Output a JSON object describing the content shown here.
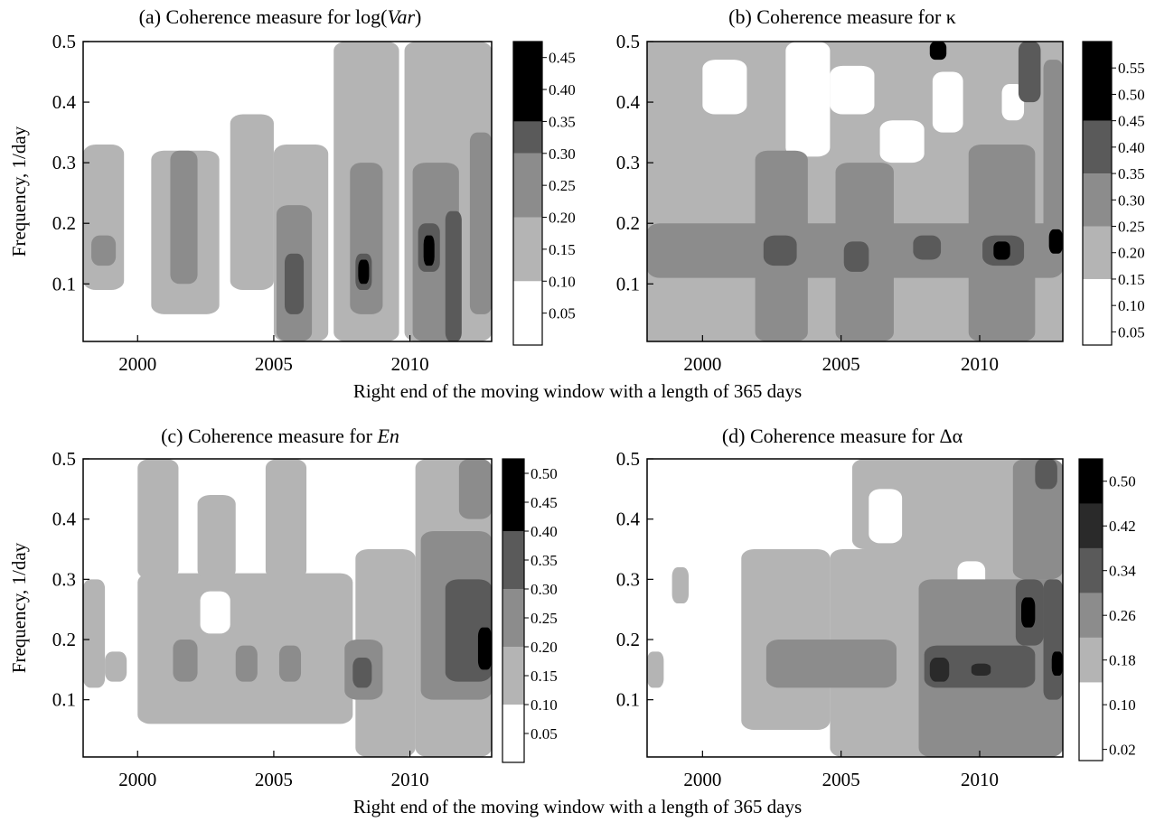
{
  "chart_data": [
    {
      "type": "heatmap",
      "title_prefix": "(a) Coherence measure for log",
      "title_italic": "Var",
      "ylabel": "Frequency, 1/day",
      "xlabel": "",
      "x_ticks": [
        "2000",
        "2005",
        "2010"
      ],
      "x_tick_values": [
        2000,
        2005,
        2010
      ],
      "y_ticks": [
        "0.1",
        "0.2",
        "0.3",
        "0.4",
        "0.5"
      ],
      "y_tick_values": [
        0.1,
        0.2,
        0.3,
        0.4,
        0.5
      ],
      "xlim": [
        1998,
        2013
      ],
      "ylim": [
        0.005,
        0.5
      ],
      "colorbar_ticks": [
        "0.05",
        "0.10",
        "0.15",
        "0.20",
        "0.25",
        "0.30",
        "0.35",
        "0.40",
        "0.45"
      ],
      "colorbar_values": [
        0.05,
        0.1,
        0.15,
        0.2,
        0.25,
        0.3,
        0.35,
        0.4,
        0.45
      ],
      "colorbar_range": [
        0.0,
        0.475
      ],
      "level_boundaries": [
        0.1,
        0.2,
        0.3,
        0.35
      ],
      "level_colors": [
        "#ffffff",
        "#b4b4b4",
        "#8c8c8c",
        "#5a5a5a",
        "#000000"
      ],
      "bands": [
        {
          "x0": 1998.0,
          "x1": 1999.5,
          "y0": 0.09,
          "y1": 0.33,
          "level": 1
        },
        {
          "x0": 1998.3,
          "x1": 1999.2,
          "y0": 0.13,
          "y1": 0.18,
          "level": 2
        },
        {
          "x0": 2000.5,
          "x1": 2003.0,
          "y0": 0.05,
          "y1": 0.32,
          "level": 1
        },
        {
          "x0": 2001.2,
          "x1": 2002.2,
          "y0": 0.1,
          "y1": 0.32,
          "level": 2
        },
        {
          "x0": 2003.4,
          "x1": 2005.0,
          "y0": 0.09,
          "y1": 0.38,
          "level": 1
        },
        {
          "x0": 2005.0,
          "x1": 2007.0,
          "y0": 0.005,
          "y1": 0.33,
          "level": 1
        },
        {
          "x0": 2005.1,
          "x1": 2006.4,
          "y0": 0.005,
          "y1": 0.23,
          "level": 2
        },
        {
          "x0": 2005.4,
          "x1": 2006.1,
          "y0": 0.05,
          "y1": 0.15,
          "level": 3
        },
        {
          "x0": 2007.2,
          "x1": 2009.6,
          "y0": 0.005,
          "y1": 0.5,
          "level": 1
        },
        {
          "x0": 2007.8,
          "x1": 2009.0,
          "y0": 0.05,
          "y1": 0.3,
          "level": 2
        },
        {
          "x0": 2008.0,
          "x1": 2008.6,
          "y0": 0.09,
          "y1": 0.15,
          "level": 3
        },
        {
          "x0": 2008.1,
          "x1": 2008.5,
          "y0": 0.1,
          "y1": 0.14,
          "level": 4
        },
        {
          "x0": 2009.8,
          "x1": 2013.0,
          "y0": 0.005,
          "y1": 0.5,
          "level": 1
        },
        {
          "x0": 2010.1,
          "x1": 2011.8,
          "y0": 0.005,
          "y1": 0.3,
          "level": 2
        },
        {
          "x0": 2010.3,
          "x1": 2011.1,
          "y0": 0.12,
          "y1": 0.2,
          "level": 3
        },
        {
          "x0": 2010.5,
          "x1": 2010.9,
          "y0": 0.13,
          "y1": 0.18,
          "level": 4
        },
        {
          "x0": 2011.3,
          "x1": 2011.9,
          "y0": 0.005,
          "y1": 0.22,
          "level": 3
        },
        {
          "x0": 2012.2,
          "x1": 2013.0,
          "y0": 0.05,
          "y1": 0.35,
          "level": 2
        }
      ]
    },
    {
      "type": "heatmap",
      "title_prefix": "(b) Coherence measure for κ",
      "title_italic": "",
      "ylabel": "",
      "xlabel": "Right end of the moving window with a length of 365 days",
      "x_ticks": [
        "2000",
        "2005",
        "2010"
      ],
      "x_tick_values": [
        2000,
        2005,
        2010
      ],
      "y_ticks": [
        "0.1",
        "0.2",
        "0.3",
        "0.4",
        "0.5"
      ],
      "y_tick_values": [
        0.1,
        0.2,
        0.3,
        0.4,
        0.5
      ],
      "xlim": [
        1998,
        2013
      ],
      "ylim": [
        0.005,
        0.5
      ],
      "colorbar_ticks": [
        "0.05",
        "0.10",
        "0.15",
        "0.20",
        "0.25",
        "0.30",
        "0.35",
        "0.40",
        "0.45",
        "0.50",
        "0.55"
      ],
      "colorbar_values": [
        0.05,
        0.1,
        0.15,
        0.2,
        0.25,
        0.3,
        0.35,
        0.4,
        0.45,
        0.5,
        0.55
      ],
      "colorbar_range": [
        0.025,
        0.6
      ],
      "level_boundaries": [
        0.15,
        0.25,
        0.35,
        0.45
      ],
      "level_colors": [
        "#ffffff",
        "#b4b4b4",
        "#8c8c8c",
        "#5a5a5a",
        "#000000"
      ],
      "base_fill_level": 1,
      "bands": [
        {
          "x0": 2000.0,
          "x1": 2001.6,
          "y0": 0.38,
          "y1": 0.47,
          "level": 0
        },
        {
          "x0": 2003.0,
          "x1": 2004.6,
          "y0": 0.31,
          "y1": 0.5,
          "level": 0
        },
        {
          "x0": 2004.6,
          "x1": 2006.2,
          "y0": 0.38,
          "y1": 0.46,
          "level": 0
        },
        {
          "x0": 2006.4,
          "x1": 2008.0,
          "y0": 0.3,
          "y1": 0.37,
          "level": 0
        },
        {
          "x0": 2008.3,
          "x1": 2009.4,
          "y0": 0.35,
          "y1": 0.45,
          "level": 0
        },
        {
          "x0": 2010.8,
          "x1": 2011.6,
          "y0": 0.37,
          "y1": 0.43,
          "level": 0
        },
        {
          "x0": 1998.0,
          "x1": 2013.0,
          "y0": 0.11,
          "y1": 0.2,
          "level": 2
        },
        {
          "x0": 2001.9,
          "x1": 2003.8,
          "y0": 0.005,
          "y1": 0.32,
          "level": 2
        },
        {
          "x0": 2004.8,
          "x1": 2006.9,
          "y0": 0.005,
          "y1": 0.3,
          "level": 2
        },
        {
          "x0": 2009.6,
          "x1": 2012.0,
          "y0": 0.005,
          "y1": 0.33,
          "level": 2
        },
        {
          "x0": 2012.3,
          "x1": 2013.0,
          "y0": 0.12,
          "y1": 0.47,
          "level": 2
        },
        {
          "x0": 2002.2,
          "x1": 2003.4,
          "y0": 0.13,
          "y1": 0.18,
          "level": 3
        },
        {
          "x0": 2005.1,
          "x1": 2006.0,
          "y0": 0.12,
          "y1": 0.17,
          "level": 3
        },
        {
          "x0": 2007.6,
          "x1": 2008.6,
          "y0": 0.14,
          "y1": 0.18,
          "level": 3
        },
        {
          "x0": 2010.1,
          "x1": 2011.6,
          "y0": 0.13,
          "y1": 0.18,
          "level": 3
        },
        {
          "x0": 2010.5,
          "x1": 2011.1,
          "y0": 0.14,
          "y1": 0.17,
          "level": 4
        },
        {
          "x0": 2012.5,
          "x1": 2013.0,
          "y0": 0.15,
          "y1": 0.19,
          "level": 4
        },
        {
          "x0": 2008.2,
          "x1": 2008.8,
          "y0": 0.47,
          "y1": 0.5,
          "level": 4
        },
        {
          "x0": 2011.4,
          "x1": 2012.2,
          "y0": 0.4,
          "y1": 0.5,
          "level": 3
        }
      ]
    },
    {
      "type": "heatmap",
      "title_prefix": "(c) Coherence measure for ",
      "title_italic": "En",
      "ylabel": "Frequency, 1/day",
      "xlabel": "",
      "x_ticks": [
        "2000",
        "2005",
        "2010"
      ],
      "x_tick_values": [
        2000,
        2005,
        2010
      ],
      "y_ticks": [
        "0.1",
        "0.2",
        "0.3",
        "0.4",
        "0.5"
      ],
      "y_tick_values": [
        0.1,
        0.2,
        0.3,
        0.4,
        0.5
      ],
      "xlim": [
        1998,
        2013
      ],
      "ylim": [
        0.005,
        0.5
      ],
      "colorbar_ticks": [
        "0.05",
        "0.10",
        "0.15",
        "0.20",
        "0.25",
        "0.30",
        "0.35",
        "0.40",
        "0.45",
        "0.50"
      ],
      "colorbar_values": [
        0.05,
        0.1,
        0.15,
        0.2,
        0.25,
        0.3,
        0.35,
        0.4,
        0.45,
        0.5
      ],
      "colorbar_range": [
        0.0,
        0.525
      ],
      "level_boundaries": [
        0.1,
        0.2,
        0.3,
        0.4
      ],
      "level_colors": [
        "#ffffff",
        "#b4b4b4",
        "#8c8c8c",
        "#5a5a5a",
        "#000000"
      ],
      "bands": [
        {
          "x0": 1998.0,
          "x1": 1998.8,
          "y0": 0.12,
          "y1": 0.3,
          "level": 1
        },
        {
          "x0": 1998.8,
          "x1": 1999.6,
          "y0": 0.13,
          "y1": 0.18,
          "level": 1
        },
        {
          "x0": 2000.0,
          "x1": 2007.9,
          "y0": 0.06,
          "y1": 0.31,
          "level": 1
        },
        {
          "x0": 2000.0,
          "x1": 2001.5,
          "y0": 0.3,
          "y1": 0.5,
          "level": 1
        },
        {
          "x0": 2002.2,
          "x1": 2003.6,
          "y0": 0.3,
          "y1": 0.44,
          "level": 1
        },
        {
          "x0": 2004.7,
          "x1": 2006.2,
          "y0": 0.3,
          "y1": 0.5,
          "level": 1
        },
        {
          "x0": 2002.3,
          "x1": 2003.4,
          "y0": 0.21,
          "y1": 0.28,
          "level": 0
        },
        {
          "x0": 2008.0,
          "x1": 2010.2,
          "y0": 0.005,
          "y1": 0.35,
          "level": 1
        },
        {
          "x0": 2010.2,
          "x1": 2013.0,
          "y0": 0.005,
          "y1": 0.5,
          "level": 1
        },
        {
          "x0": 2001.3,
          "x1": 2002.2,
          "y0": 0.13,
          "y1": 0.2,
          "level": 2
        },
        {
          "x0": 2003.6,
          "x1": 2004.4,
          "y0": 0.13,
          "y1": 0.19,
          "level": 2
        },
        {
          "x0": 2005.2,
          "x1": 2006.0,
          "y0": 0.13,
          "y1": 0.19,
          "level": 2
        },
        {
          "x0": 2007.6,
          "x1": 2009.0,
          "y0": 0.1,
          "y1": 0.2,
          "level": 2
        },
        {
          "x0": 2007.9,
          "x1": 2008.6,
          "y0": 0.12,
          "y1": 0.17,
          "level": 3
        },
        {
          "x0": 2010.4,
          "x1": 2013.0,
          "y0": 0.1,
          "y1": 0.38,
          "level": 2
        },
        {
          "x0": 2011.3,
          "x1": 2013.0,
          "y0": 0.13,
          "y1": 0.3,
          "level": 3
        },
        {
          "x0": 2012.5,
          "x1": 2013.0,
          "y0": 0.15,
          "y1": 0.22,
          "level": 4
        },
        {
          "x0": 2011.8,
          "x1": 2013.0,
          "y0": 0.4,
          "y1": 0.5,
          "level": 2
        }
      ]
    },
    {
      "type": "heatmap",
      "title_prefix": "(d) Coherence measure for Δα",
      "title_italic": "",
      "ylabel": "",
      "xlabel": "Right end of the moving window with a length of 365 days",
      "x_ticks": [
        "2000",
        "2005",
        "2010"
      ],
      "x_tick_values": [
        2000,
        2005,
        2010
      ],
      "y_ticks": [
        "0.1",
        "0.2",
        "0.3",
        "0.4",
        "0.5"
      ],
      "y_tick_values": [
        0.1,
        0.2,
        0.3,
        0.4,
        0.5
      ],
      "xlim": [
        1998,
        2013
      ],
      "ylim": [
        0.005,
        0.5
      ],
      "colorbar_ticks": [
        "0.02",
        "0.10",
        "0.18",
        "0.26",
        "0.34",
        "0.42",
        "0.50"
      ],
      "colorbar_values": [
        0.02,
        0.1,
        0.18,
        0.26,
        0.34,
        0.42,
        0.5
      ],
      "colorbar_range": [
        0.0,
        0.54
      ],
      "level_boundaries": [
        0.14,
        0.22,
        0.3,
        0.38,
        0.46
      ],
      "level_colors": [
        "#ffffff",
        "#b4b4b4",
        "#8c8c8c",
        "#5a5a5a",
        "#2a2a2a",
        "#000000"
      ],
      "bands": [
        {
          "x0": 1998.0,
          "x1": 1998.6,
          "y0": 0.12,
          "y1": 0.18,
          "level": 1
        },
        {
          "x0": 1998.9,
          "x1": 1999.5,
          "y0": 0.26,
          "y1": 0.32,
          "level": 1
        },
        {
          "x0": 2001.4,
          "x1": 2004.6,
          "y0": 0.05,
          "y1": 0.35,
          "level": 1
        },
        {
          "x0": 2004.6,
          "x1": 2013.0,
          "y0": 0.005,
          "y1": 0.35,
          "level": 1
        },
        {
          "x0": 2005.4,
          "x1": 2013.0,
          "y0": 0.35,
          "y1": 0.5,
          "level": 1
        },
        {
          "x0": 2006.0,
          "x1": 2007.2,
          "y0": 0.36,
          "y1": 0.45,
          "level": 0
        },
        {
          "x0": 2009.2,
          "x1": 2010.2,
          "y0": 0.26,
          "y1": 0.33,
          "level": 0
        },
        {
          "x0": 2002.3,
          "x1": 2007.0,
          "y0": 0.12,
          "y1": 0.2,
          "level": 2
        },
        {
          "x0": 2007.8,
          "x1": 2013.0,
          "y0": 0.005,
          "y1": 0.3,
          "level": 2
        },
        {
          "x0": 2011.2,
          "x1": 2013.0,
          "y0": 0.3,
          "y1": 0.5,
          "level": 2
        },
        {
          "x0": 2008.0,
          "x1": 2012.0,
          "y0": 0.12,
          "y1": 0.19,
          "level": 3
        },
        {
          "x0": 2011.3,
          "x1": 2012.3,
          "y0": 0.19,
          "y1": 0.3,
          "level": 3
        },
        {
          "x0": 2012.3,
          "x1": 2013.0,
          "y0": 0.1,
          "y1": 0.3,
          "level": 3
        },
        {
          "x0": 2008.2,
          "x1": 2008.9,
          "y0": 0.13,
          "y1": 0.17,
          "level": 4
        },
        {
          "x0": 2009.7,
          "x1": 2010.4,
          "y0": 0.14,
          "y1": 0.16,
          "level": 4
        },
        {
          "x0": 2011.5,
          "x1": 2012.0,
          "y0": 0.22,
          "y1": 0.27,
          "level": 5
        },
        {
          "x0": 2012.6,
          "x1": 2013.0,
          "y0": 0.14,
          "y1": 0.18,
          "level": 5
        },
        {
          "x0": 2012.0,
          "x1": 2012.8,
          "y0": 0.45,
          "y1": 0.5,
          "level": 3
        }
      ]
    }
  ]
}
